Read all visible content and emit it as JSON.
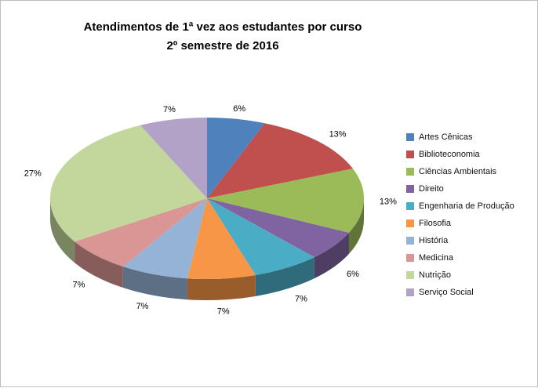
{
  "chart_data": {
    "type": "pie",
    "style": "3d",
    "title_line1": "Atendimentos de 1ª vez aos estudantes por curso",
    "title_line2": "2º semestre de 2016",
    "legend_position": "right",
    "grid": false,
    "value_suffix": "%",
    "categories": [
      "Artes Cênicas",
      "Biblioteconomia",
      "Ciências Ambientais",
      "Direito",
      "Engenharia de Produção",
      "Filosofia",
      "História",
      "Medicina",
      "Nutrição",
      "Serviço Social"
    ],
    "values": [
      6,
      13,
      13,
      6,
      7,
      7,
      7,
      7,
      27,
      7
    ],
    "labels_shown": [
      "6%",
      "13%",
      "13%",
      "6%",
      "7%",
      "7%",
      "7%",
      "7%",
      "27%",
      "7%"
    ],
    "colors": [
      "#4F81BD",
      "#C0504D",
      "#9BBB59",
      "#8064A2",
      "#4BACC6",
      "#F79646",
      "#95B3D7",
      "#D99694",
      "#C3D69B",
      "#B3A2C7"
    ]
  }
}
